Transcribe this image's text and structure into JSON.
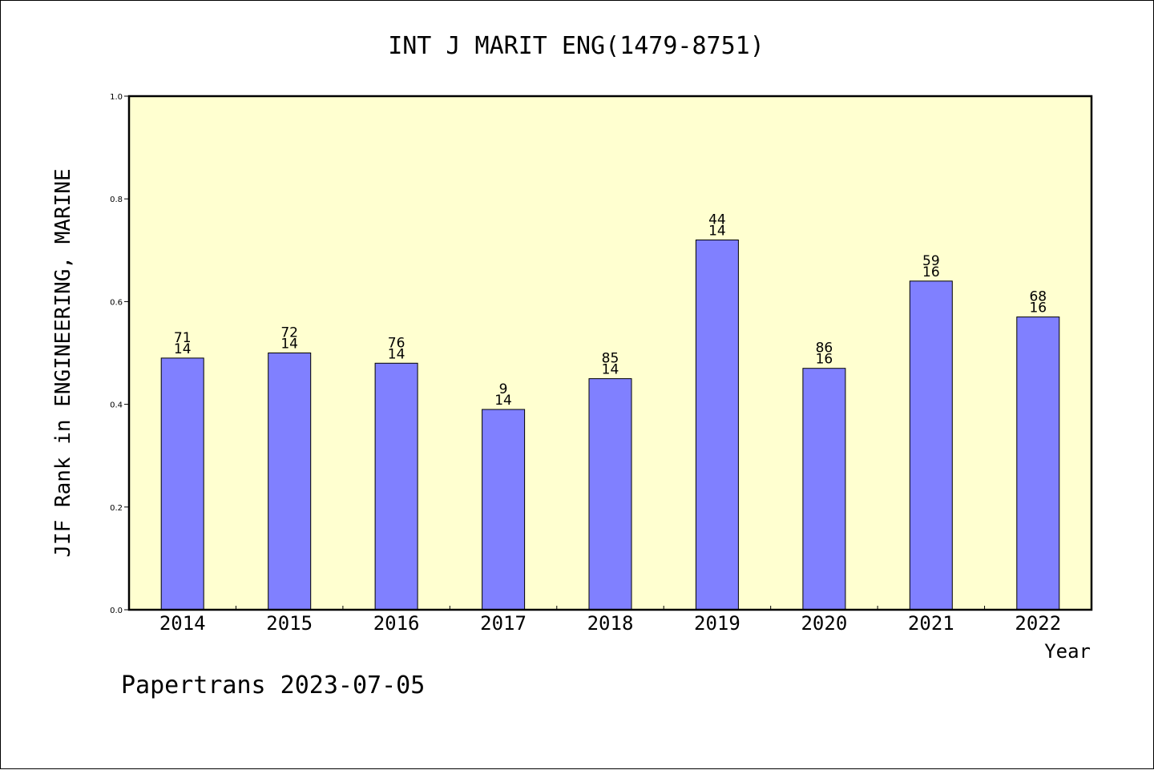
{
  "chart_data": {
    "type": "bar",
    "title": "INT J MARIT ENG(1479-8751)",
    "ylabel": "JIF Rank in ENGINEERING, MARINE",
    "xlabel": "Year",
    "ylim": [
      0.0,
      1.0
    ],
    "yticks": [
      "0.0",
      "0.2",
      "0.4",
      "0.6",
      "0.8",
      "1.0"
    ],
    "categories": [
      "2014",
      "2015",
      "2016",
      "2017",
      "2018",
      "2019",
      "2020",
      "2021",
      "2022"
    ],
    "values": [
      0.49,
      0.5,
      0.48,
      0.39,
      0.45,
      0.72,
      0.47,
      0.64,
      0.57
    ],
    "label_top": [
      "71",
      "72",
      "76",
      "9",
      "85",
      "44",
      "86",
      "59",
      "68"
    ],
    "label_bottom": [
      "14",
      "14",
      "14",
      "14",
      "14",
      "14",
      "16",
      "16",
      "16"
    ],
    "grid": false,
    "colors": {
      "plot_bg": "#ffffd0",
      "bar": "#8080ff"
    }
  },
  "footer": "Papertrans 2023-07-05"
}
